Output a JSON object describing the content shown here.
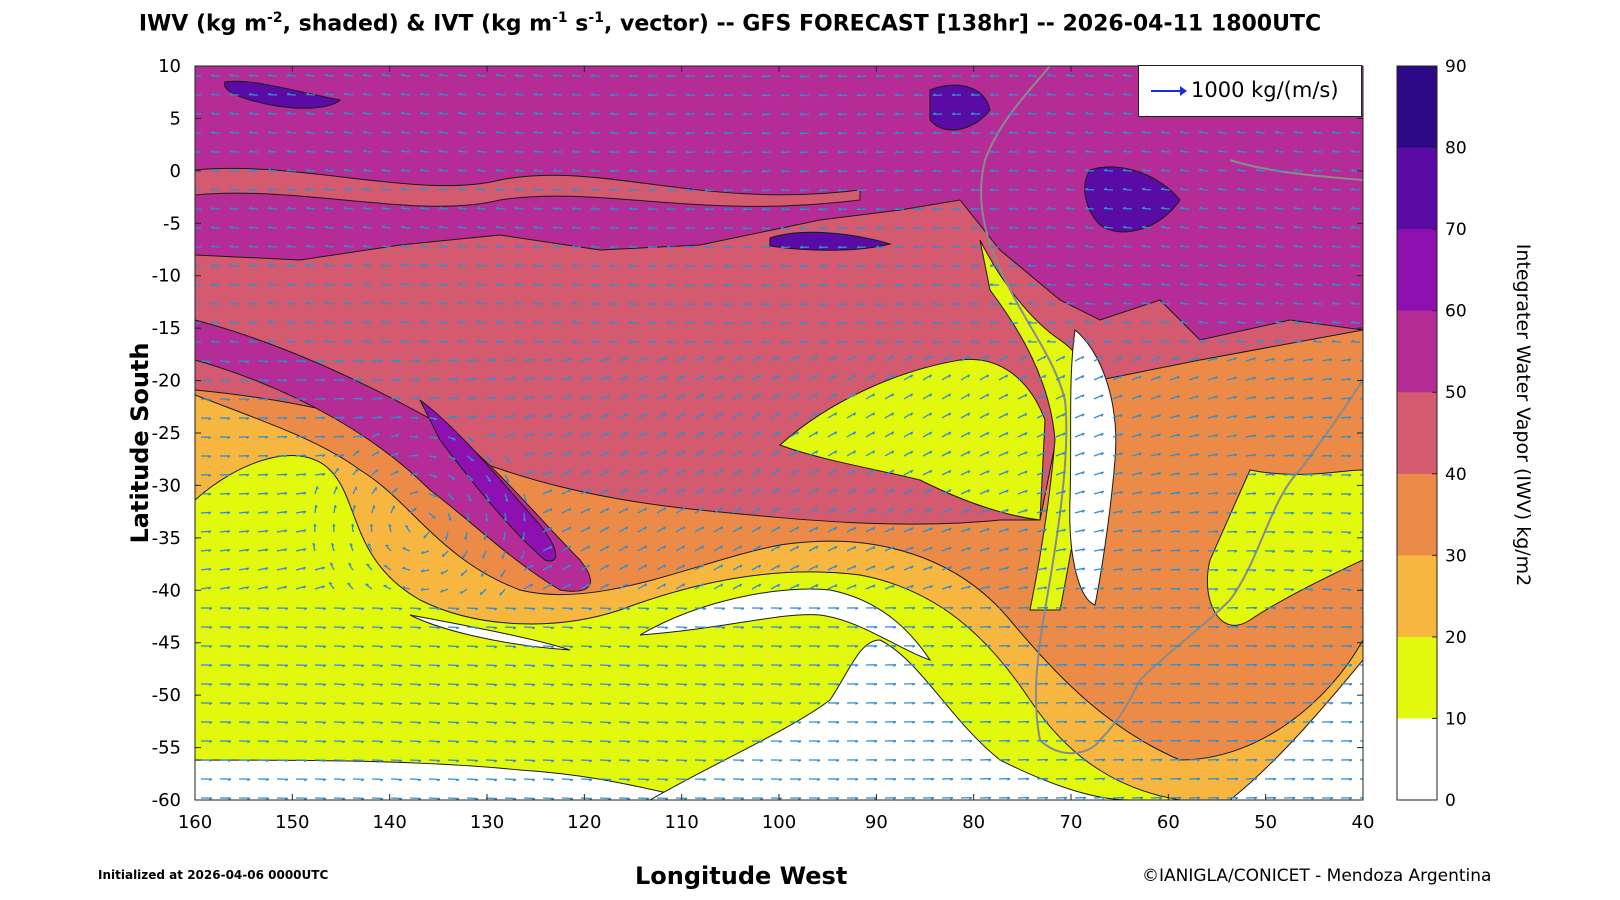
{
  "title": {
    "part1": "IWV (kg m",
    "sup1": "-2",
    "part2": ", shaded) & IVT (kg m",
    "sup2": "-1",
    "part3": " s",
    "sup3": "-1",
    "part4": ", vector) -- GFS FORECAST [138hr] -- 2026-04-11 1800UTC"
  },
  "axes": {
    "xlabel": "Longitude West",
    "ylabel": "Latitude South",
    "x_ticks": [
      "160",
      "150",
      "140",
      "130",
      "120",
      "110",
      "100",
      "90",
      "80",
      "70",
      "60",
      "50",
      "40"
    ],
    "y_ticks": [
      "10",
      "5",
      "0",
      "-5",
      "-10",
      "-15",
      "-20",
      "-25",
      "-30",
      "-35",
      "-40",
      "-45",
      "-50",
      "-55",
      "-60"
    ],
    "x_range": [
      160,
      40
    ],
    "y_range": [
      10,
      -60
    ]
  },
  "colorbar": {
    "label": "Integrater Water Vapor (IWV) kg/m2",
    "ticks": [
      "90",
      "80",
      "70",
      "60",
      "50",
      "40",
      "30",
      "20",
      "10",
      "0"
    ],
    "colors": [
      "#2d0887",
      "#5a0ba6",
      "#8f10b0",
      "#b62c96",
      "#d35a6f",
      "#ec8a47",
      "#f6b63f",
      "#e2f80d",
      "#ffffff"
    ]
  },
  "legend": {
    "text": "1000 kg/(m/s)",
    "arrow_color": "#1530d8"
  },
  "footer": {
    "initialized": "Initialized at 2026-04-06 0000UTC",
    "credit": "©IANIGLA/CONICET - Mendoza Argentina"
  },
  "colors": {
    "vector": "#2f8fd0",
    "coast": "#8a8a8a",
    "contour": "#1a1a1a"
  }
}
